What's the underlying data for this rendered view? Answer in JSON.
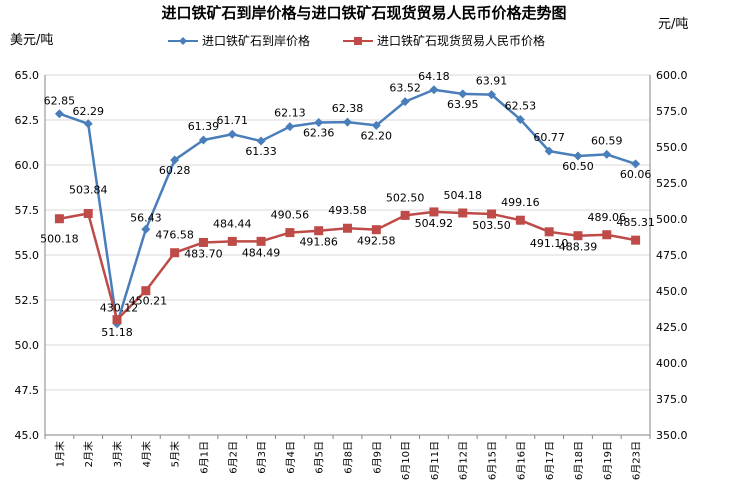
{
  "chart_data": {
    "type": "line",
    "title": "进口铁矿石到岸价格与进口铁矿石现货贸易人民币价格走势图",
    "left_unit": "美元/吨",
    "right_unit": "元/吨",
    "categories": [
      "1月末",
      "2月末",
      "3月末",
      "4月末",
      "5月末",
      "6月1日",
      "6月2日",
      "6月3日",
      "6月4日",
      "6月5日",
      "6月8日",
      "6月9日",
      "6月10日",
      "6月11日",
      "6月12日",
      "6月15日",
      "6月16日",
      "6月17日",
      "6月18日",
      "6月19日",
      "6月23日"
    ],
    "left_axis": {
      "min": 45.0,
      "max": 65.0,
      "step": 2.5,
      "ticks": [
        "45.0",
        "47.5",
        "50.0",
        "52.5",
        "55.0",
        "57.5",
        "60.0",
        "62.5",
        "65.0"
      ]
    },
    "right_axis": {
      "min": 350.0,
      "max": 600.0,
      "step": 25.0,
      "ticks": [
        "350.0",
        "375.0",
        "400.0",
        "425.0",
        "450.0",
        "475.0",
        "500.0",
        "525.0",
        "550.0",
        "575.0",
        "600.0"
      ]
    },
    "series": [
      {
        "name": "进口铁矿石到岸价格",
        "axis": "left",
        "color": "#4a7ebb",
        "marker": "diamond",
        "values": [
          62.85,
          62.29,
          51.18,
          56.43,
          60.28,
          61.39,
          61.71,
          61.33,
          62.13,
          62.36,
          62.38,
          62.2,
          63.52,
          64.18,
          63.95,
          63.91,
          62.53,
          60.77,
          60.5,
          60.59,
          60.06
        ],
        "labels": [
          "62.85",
          "62.29",
          "51.18",
          "56.43",
          "60.28",
          "61.39",
          "61.71",
          "61.33",
          "62.13",
          "62.36",
          "62.38",
          "62.20",
          "63.52",
          "64.18",
          "63.95",
          "63.91",
          "62.53",
          "60.77",
          "60.50",
          "60.59",
          "60.06"
        ]
      },
      {
        "name": "进口铁矿石现货贸易人民币价格",
        "axis": "right",
        "color": "#be4b48",
        "marker": "square",
        "values": [
          500.18,
          503.84,
          430.12,
          450.21,
          476.58,
          483.7,
          484.44,
          484.49,
          490.56,
          491.86,
          493.58,
          492.58,
          502.5,
          504.92,
          504.18,
          503.5,
          499.16,
          491.1,
          488.39,
          489.06,
          485.31
        ],
        "labels": [
          "500.18",
          "503.84",
          "430.12",
          "450.21",
          "476.58",
          "483.70",
          "484.44",
          "484.49",
          "490.56",
          "491.86",
          "493.58",
          "492.58",
          "502.50",
          "504.92",
          "504.18",
          "503.50",
          "499.16",
          "491.10",
          "488.39",
          "489.06",
          "485.31"
        ]
      }
    ],
    "grid": true,
    "legend_position": "top"
  }
}
